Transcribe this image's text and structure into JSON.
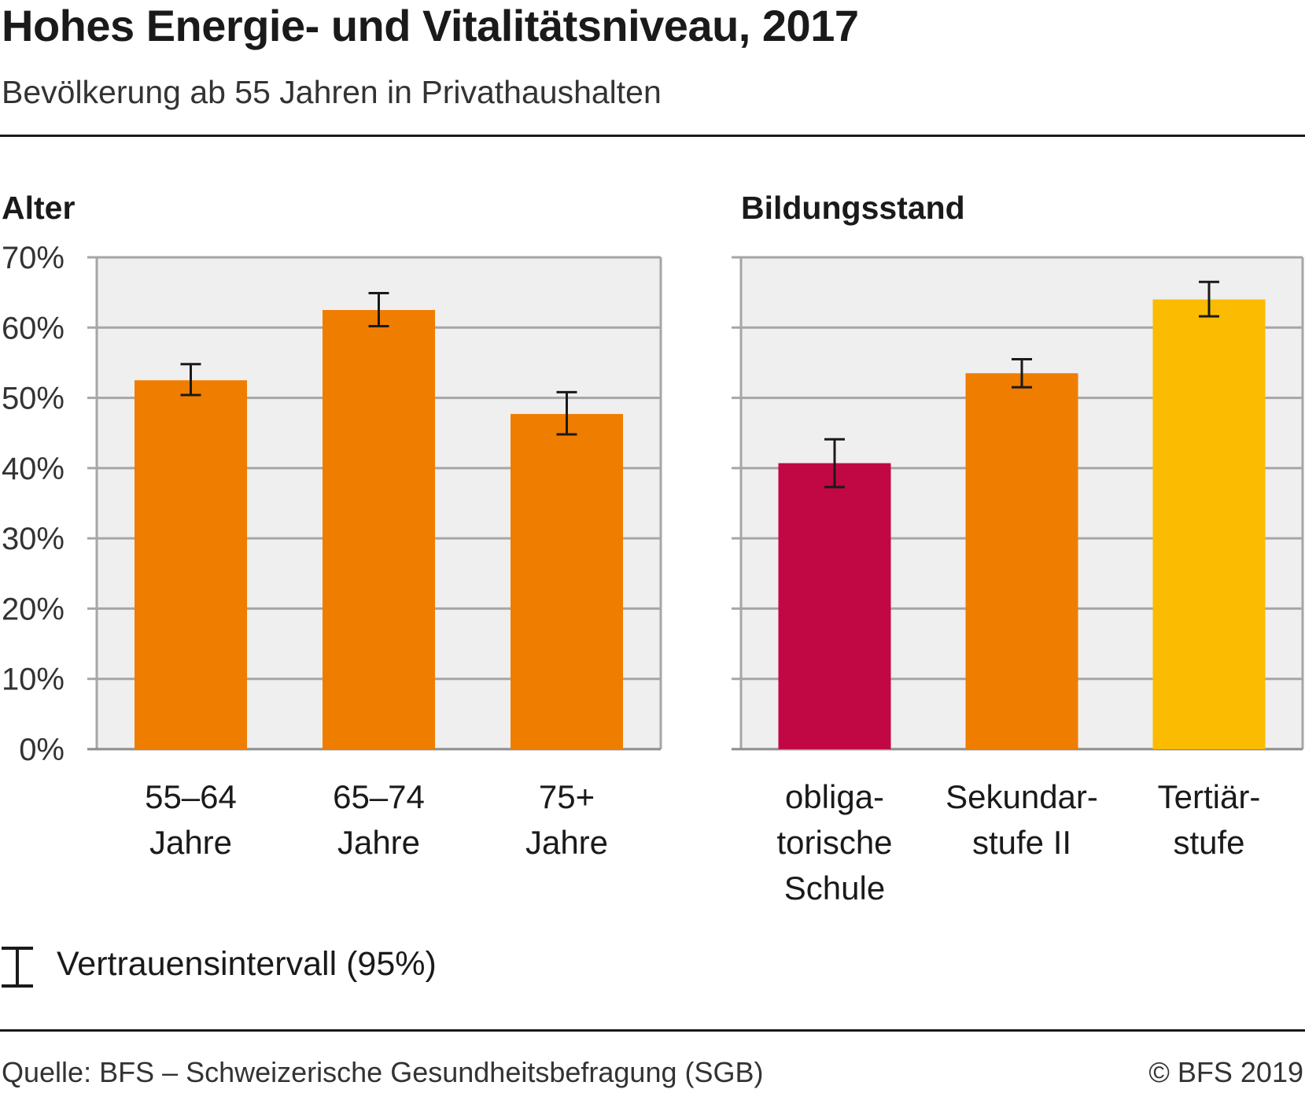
{
  "header": {
    "title": "Hohes Energie- und Vitalitätsniveau, 2017",
    "subtitle": "Bevölkerung ab 55 Jahren in Privathaushalten"
  },
  "legend": {
    "label": "Vertrauensintervall (95%)",
    "icon": "confidence-interval-icon"
  },
  "footer": {
    "source": "Quelle: BFS – Schweizerische Gesundheitsbefragung (SGB)",
    "copyright": "© BFS 2019"
  },
  "chart_data": [
    {
      "type": "bar",
      "title": "Alter",
      "categories": [
        [
          "55–64",
          "Jahre"
        ],
        [
          "65–74",
          "Jahre"
        ],
        [
          "75+",
          "Jahre"
        ]
      ],
      "values": [
        52.5,
        62.5,
        47.7
      ],
      "ci_low": [
        50.4,
        60.2,
        44.8
      ],
      "ci_high": [
        54.8,
        64.9,
        50.8
      ],
      "colors": [
        "#ef7d00",
        "#ef7d00",
        "#ef7d00"
      ],
      "ylim": [
        0,
        70
      ],
      "yticks": [
        "0%",
        "10%",
        "20%",
        "30%",
        "40%",
        "50%",
        "60%",
        "70%"
      ],
      "grid": true
    },
    {
      "type": "bar",
      "title": "Bildungsstand",
      "categories": [
        [
          "obliga-",
          "torische",
          "Schule"
        ],
        [
          "Sekundar-",
          "stufe II"
        ],
        [
          "Tertiär-",
          "stufe"
        ]
      ],
      "values": [
        40.7,
        53.5,
        64.0
      ],
      "ci_low": [
        37.3,
        51.5,
        61.6
      ],
      "ci_high": [
        44.1,
        55.5,
        66.5
      ],
      "colors": [
        "#c10845",
        "#ef7d00",
        "#fbbb00"
      ],
      "ylim": [
        0,
        70
      ],
      "grid": true
    }
  ]
}
